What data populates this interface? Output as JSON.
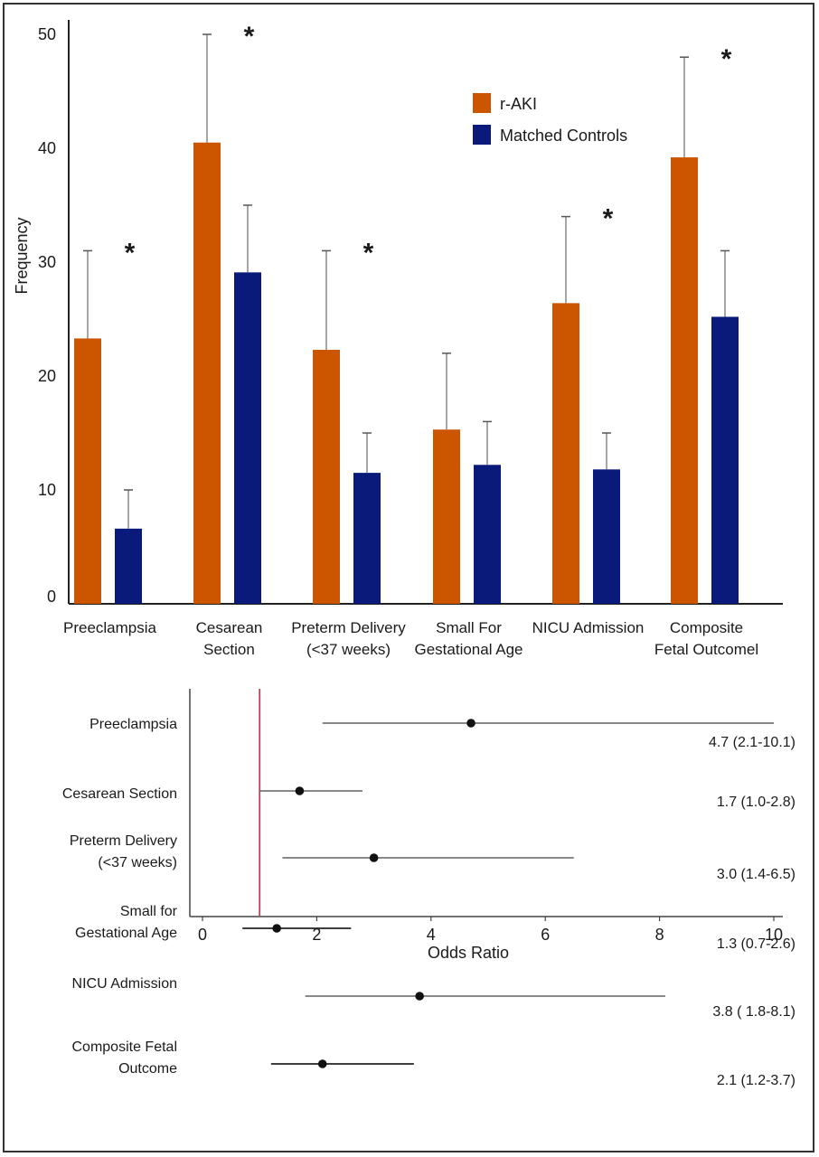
{
  "chart_data": [
    {
      "type": "bar",
      "ylabel": "Frequency",
      "ylim": [
        0,
        50
      ],
      "yticks": [
        "0",
        "10",
        "20",
        "30",
        "40",
        "50"
      ],
      "categories": [
        [
          "Preeclampsia"
        ],
        [
          "Cesarean",
          "Section"
        ],
        [
          "Preterm Delivery",
          "(<37 weeks)"
        ],
        [
          "Small For",
          "Gestational Age"
        ],
        [
          "NICU Admission"
        ],
        [
          "Composite",
          "Fetal Outcomel"
        ]
      ],
      "series": [
        {
          "name": "r-AKI",
          "color": "#cc5500",
          "values": [
            23.3,
            40.5,
            22.3,
            15.3,
            26.4,
            39.2
          ],
          "err_upper": [
            31,
            50,
            31,
            22,
            34,
            48
          ]
        },
        {
          "name": "Matched Controls",
          "color": "#0a1a7a",
          "values": [
            6.6,
            29.1,
            11.5,
            12.2,
            11.8,
            25.2
          ],
          "err_upper": [
            10,
            35,
            15,
            16,
            15,
            31
          ]
        }
      ],
      "significance_marker": "*",
      "significant": [
        true,
        true,
        true,
        false,
        true,
        true
      ]
    },
    {
      "type": "forest",
      "xlabel": "Odds Ratio",
      "xlim": [
        0,
        10
      ],
      "xticks": [
        "0",
        "2",
        "4",
        "6",
        "8",
        "10"
      ],
      "reference_line": 1,
      "reference_color": "#c0405a",
      "rows": [
        {
          "label": [
            "Preeclampsia"
          ],
          "or": 4.7,
          "lo": 2.1,
          "hi": 10.1,
          "text": "4.7 (2.1-10.1)"
        },
        {
          "label": [
            "Cesarean Section"
          ],
          "or": 1.7,
          "lo": 1.0,
          "hi": 2.8,
          "text": "1.7 (1.0-2.8)"
        },
        {
          "label": [
            "Preterm Delivery",
            "(<37 weeks)"
          ],
          "or": 3.0,
          "lo": 1.4,
          "hi": 6.5,
          "text": "3.0 (1.4-6.5)"
        },
        {
          "label": [
            "Small for",
            "Gestational Age"
          ],
          "or": 1.3,
          "lo": 0.7,
          "hi": 2.6,
          "text": "1.3 (0.7-2.6)"
        },
        {
          "label": [
            "NICU Admission"
          ],
          "or": 3.8,
          "lo": 1.8,
          "hi": 8.1,
          "text": "3.8 ( 1.8-8.1)"
        },
        {
          "label": [
            "Composite Fetal",
            "Outcome"
          ],
          "or": 2.1,
          "lo": 1.2,
          "hi": 3.7,
          "text": "2.1 (1.2-3.7)"
        }
      ]
    }
  ]
}
